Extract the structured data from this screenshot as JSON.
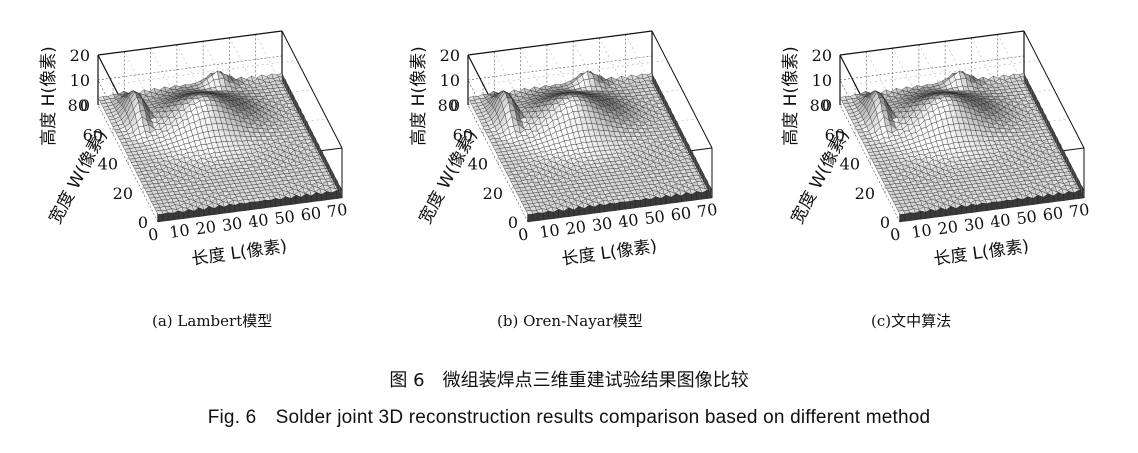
{
  "chart_data": [
    {
      "type": "surface3d",
      "caption": "(a) Lambert模型",
      "xlabel": "长度 L(像素)",
      "ylabel": "宽度 W(像素)",
      "zlabel": "高度 H(像素)",
      "x_ticks": [
        "0",
        "10",
        "20",
        "30",
        "40",
        "50",
        "60",
        "70"
      ],
      "y_ticks": [
        "0",
        "20",
        "40",
        "60",
        "80"
      ],
      "z_ticks": [
        "0",
        "10",
        "20"
      ],
      "xlim": [
        0,
        70
      ],
      "ylim": [
        0,
        80
      ],
      "zlim": [
        0,
        20
      ],
      "surface": {
        "base_height": 3,
        "peak_height": 13,
        "peak_position_L": 33,
        "peak_position_W": 55,
        "ridge_height": 14
      }
    },
    {
      "type": "surface3d",
      "caption": "(b) Oren-Nayar模型",
      "xlabel": "长度 L(像素)",
      "ylabel": "宽度 W(像素)",
      "zlabel": "高度 H(像素)",
      "x_ticks": [
        "0",
        "10",
        "20",
        "30",
        "40",
        "50",
        "60",
        "70"
      ],
      "y_ticks": [
        "0",
        "20",
        "40",
        "60",
        "80"
      ],
      "z_ticks": [
        "0",
        "10",
        "20"
      ],
      "xlim": [
        0,
        70
      ],
      "ylim": [
        0,
        80
      ],
      "zlim": [
        0,
        20
      ],
      "surface": {
        "base_height": 3,
        "peak_height": 13,
        "peak_position_L": 33,
        "peak_position_W": 55,
        "ridge_height": 14
      }
    },
    {
      "type": "surface3d",
      "caption": "(c)文中算法",
      "xlabel": "长度 L(像素)",
      "ylabel": "宽度 W(像素)",
      "zlabel": "高度 H(像素)",
      "x_ticks": [
        "0",
        "10",
        "20",
        "30",
        "40",
        "50",
        "60",
        "70"
      ],
      "y_ticks": [
        "0",
        "20",
        "40",
        "60",
        "80"
      ],
      "z_ticks": [
        "0",
        "10",
        "20"
      ],
      "xlim": [
        0,
        70
      ],
      "ylim": [
        0,
        80
      ],
      "zlim": [
        0,
        20
      ],
      "surface": {
        "base_height": 3,
        "peak_height": 13,
        "peak_position_L": 33,
        "peak_position_W": 55,
        "ridge_height": 14
      }
    }
  ],
  "figure": {
    "title_cn": "图 6　微组装焊点三维重建试验结果图像比较",
    "title_en": "Fig. 6　Solder joint 3D reconstruction results comparison based on different method"
  }
}
